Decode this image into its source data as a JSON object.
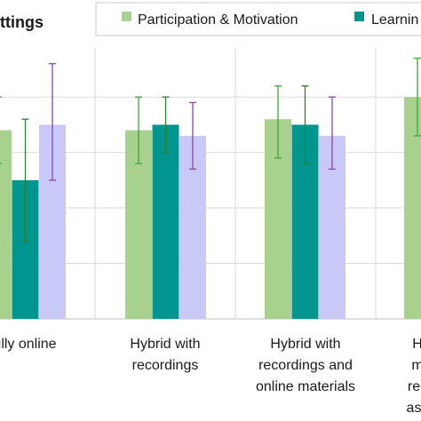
{
  "chart_data": {
    "type": "bar",
    "title": "ttings",
    "categories": [
      [
        "ully online"
      ],
      [
        "Hybrid with",
        "recordings"
      ],
      [
        "Hybrid with",
        "recordings and",
        "online materials"
      ],
      [
        "H",
        "m",
        "rec",
        "ass"
      ]
    ],
    "series": [
      {
        "name": "Participation & Motivation",
        "color": "#a9d18e",
        "values": [
          3.4,
          3.4,
          3.6,
          4.0
        ],
        "err_low": [
          2.8,
          2.8,
          2.9,
          3.3
        ],
        "err_high": [
          4.0,
          4.0,
          4.2,
          4.7
        ]
      },
      {
        "name": "Learnin",
        "color": "#00968f",
        "values": [
          2.5,
          3.5,
          3.5,
          null
        ],
        "err_low": [
          1.4,
          3.0,
          2.8,
          null
        ],
        "err_high": [
          3.6,
          4.0,
          4.2,
          null
        ]
      },
      {
        "name": "",
        "color": "#c9c9f7",
        "values": [
          3.5,
          3.3,
          3.3,
          null
        ],
        "err_low": [
          2.5,
          2.7,
          2.7,
          null
        ],
        "err_high": [
          4.6,
          3.9,
          4.0,
          null
        ]
      }
    ],
    "err_colors": [
      "#3aa83a",
      "#2e7d32",
      "#8e44ad"
    ],
    "ylim": [
      0,
      4.9
    ],
    "grid": true,
    "legend": "top-right"
  }
}
